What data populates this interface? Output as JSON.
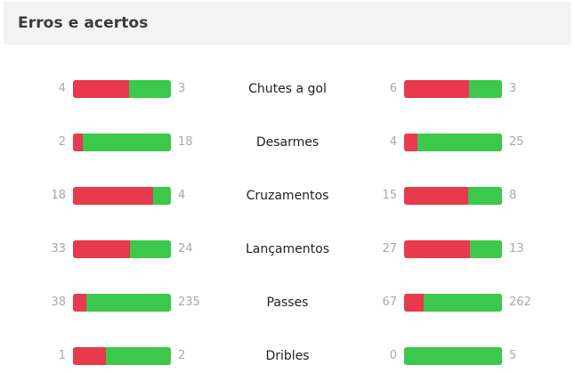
{
  "header": {
    "title": "Erros e acertos"
  },
  "colors": {
    "errors": "#e8394d",
    "hits": "#3cc84b",
    "numbers": "#a8a8a8"
  },
  "chart_data": {
    "type": "bar",
    "title": "Erros e acertos",
    "categories": [
      "Chutes a gol",
      "Desarmes",
      "Cruzamentos",
      "Lançamentos",
      "Passes",
      "Dribles"
    ],
    "teams": [
      {
        "side": "left",
        "series": [
          {
            "values": [
              4,
              2,
              18,
              33,
              38,
              1
            ]
          },
          {
            "values": [
              3,
              18,
              4,
              24,
              235,
              2
            ]
          }
        ]
      },
      {
        "side": "right",
        "series": [
          {
            "values": [
              6,
              4,
              15,
              27,
              67,
              0
            ]
          },
          {
            "values": [
              3,
              25,
              8,
              13,
              262,
              5
            ]
          }
        ]
      }
    ]
  }
}
